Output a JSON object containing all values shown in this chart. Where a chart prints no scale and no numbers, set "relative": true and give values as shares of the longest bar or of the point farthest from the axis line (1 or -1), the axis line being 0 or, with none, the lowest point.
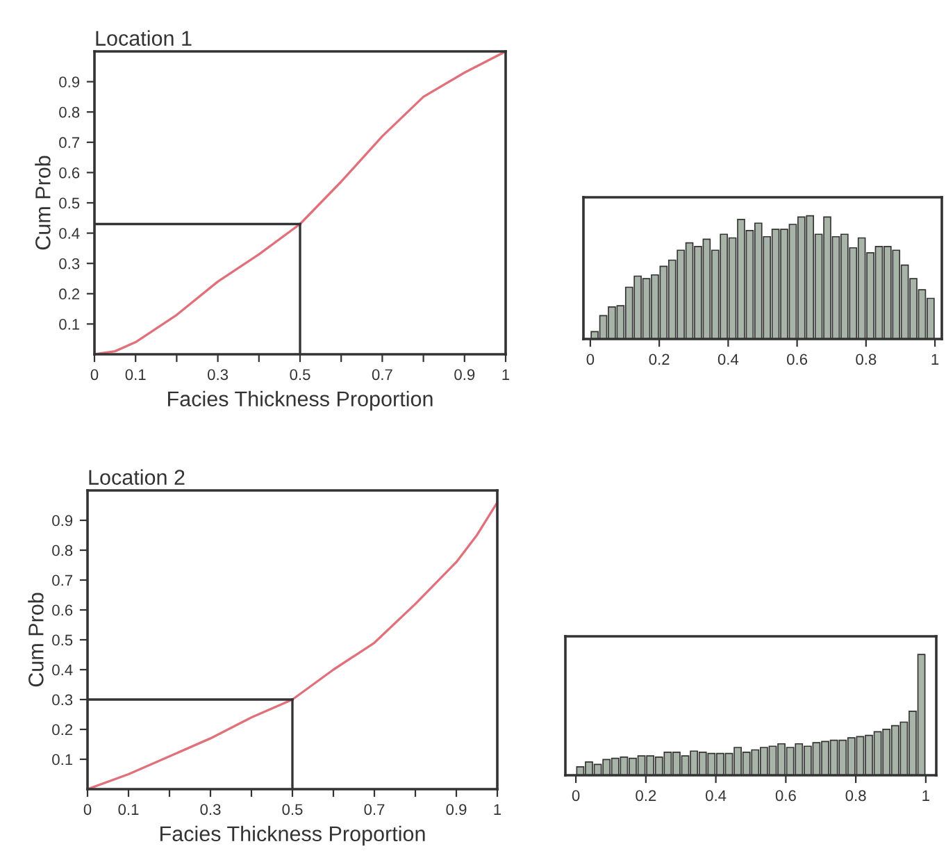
{
  "chart_data": [
    {
      "type": "line",
      "title": "Location 1",
      "xlabel": "Facies Thickness Proportion",
      "ylabel": "Cum Prob",
      "x": [
        0,
        0.05,
        0.1,
        0.2,
        0.3,
        0.4,
        0.5,
        0.6,
        0.7,
        0.8,
        0.9,
        1
      ],
      "series": [
        {
          "color": "#e0707a",
          "values": [
            0,
            0.01,
            0.04,
            0.13,
            0.24,
            0.33,
            0.43,
            0.57,
            0.72,
            0.85,
            0.93,
            1
          ]
        }
      ],
      "xlim": [
        0,
        1
      ],
      "ylim": [
        0,
        1
      ],
      "xticks": [
        0,
        0.1,
        {
          "value": 0.2,
          "label": null
        },
        0.3,
        {
          "value": 0.4,
          "label": null
        },
        0.5,
        {
          "value": 0.6,
          "label": null
        },
        0.7,
        {
          "value": 0.8,
          "label": null
        },
        0.9,
        1
      ],
      "yticks": [
        0.1,
        0.2,
        0.3,
        0.4,
        0.5,
        0.6,
        0.7,
        0.8,
        0.9
      ],
      "ref_lines": [
        {
          "axis": "x",
          "value": 0.5,
          "color": "#333333"
        },
        {
          "axis": "y",
          "value": 0.43,
          "color": "#333333"
        }
      ],
      "grid": false
    },
    {
      "type": "bar",
      "relative": true,
      "color": "#a9b4a9",
      "x": [
        0.0125,
        0.0375,
        0.0625,
        0.0875,
        0.1125,
        0.1375,
        0.1625,
        0.1875,
        0.2125,
        0.2375,
        0.2625,
        0.2875,
        0.3125,
        0.3375,
        0.3625,
        0.3875,
        0.4125,
        0.4375,
        0.4625,
        0.4875,
        0.5125,
        0.5375,
        0.5625,
        0.5875,
        0.6125,
        0.6375,
        0.6625,
        0.6875,
        0.7125,
        0.7375,
        0.7625,
        0.7875,
        0.8125,
        0.8375,
        0.8625,
        0.8875,
        0.9125,
        0.9375,
        0.9625,
        0.9875
      ],
      "values": [
        0.06,
        0.19,
        0.26,
        0.27,
        0.42,
        0.51,
        0.49,
        0.52,
        0.59,
        0.64,
        0.72,
        0.78,
        0.75,
        0.81,
        0.72,
        0.85,
        0.82,
        0.97,
        0.88,
        0.94,
        0.83,
        0.89,
        0.89,
        0.93,
        0.99,
        1.0,
        0.85,
        0.99,
        0.83,
        0.85,
        0.74,
        0.82,
        0.7,
        0.75,
        0.75,
        0.72,
        0.6,
        0.49,
        0.4,
        0.33
      ],
      "xlim": [
        -0.02,
        1.02
      ],
      "xticks": [
        0,
        0.2,
        0.4,
        0.6,
        0.8,
        1
      ],
      "grid": false
    },
    {
      "type": "line",
      "title": "Location 2",
      "xlabel": "Facies Thickness Proportion",
      "ylabel": "Cum Prob",
      "x": [
        0,
        0.1,
        0.2,
        0.3,
        0.4,
        0.5,
        0.6,
        0.7,
        0.8,
        0.9,
        0.95,
        1
      ],
      "series": [
        {
          "color": "#e0707a",
          "values": [
            0,
            0.05,
            0.11,
            0.17,
            0.24,
            0.3,
            0.4,
            0.49,
            0.62,
            0.76,
            0.85,
            0.96
          ]
        }
      ],
      "xlim": [
        0,
        1
      ],
      "ylim": [
        0,
        1
      ],
      "xticks": [
        0,
        0.1,
        {
          "value": 0.2,
          "label": null
        },
        0.3,
        {
          "value": 0.4,
          "label": null
        },
        0.5,
        {
          "value": 0.6,
          "label": null
        },
        0.7,
        {
          "value": 0.8,
          "label": null
        },
        0.9,
        1
      ],
      "yticks": [
        0.1,
        0.2,
        0.3,
        0.4,
        0.5,
        0.6,
        0.7,
        0.8,
        0.9
      ],
      "ref_lines": [
        {
          "axis": "x",
          "value": 0.5,
          "color": "#333333"
        },
        {
          "axis": "y",
          "value": 0.3,
          "color": "#333333"
        }
      ],
      "grid": false
    },
    {
      "type": "bar",
      "relative": true,
      "color": "#a9b4a9",
      "x": [
        0.0125,
        0.0375,
        0.0625,
        0.0875,
        0.1125,
        0.1375,
        0.1625,
        0.1875,
        0.2125,
        0.2375,
        0.2625,
        0.2875,
        0.3125,
        0.3375,
        0.3625,
        0.3875,
        0.4125,
        0.4375,
        0.4625,
        0.4875,
        0.5125,
        0.5375,
        0.5625,
        0.5875,
        0.6125,
        0.6375,
        0.6625,
        0.6875,
        0.7125,
        0.7375,
        0.7625,
        0.7875,
        0.8125,
        0.8375,
        0.8625,
        0.8875,
        0.9125,
        0.9375,
        0.9625,
        0.9875
      ],
      "values": [
        0.07,
        0.11,
        0.09,
        0.13,
        0.14,
        0.15,
        0.14,
        0.16,
        0.16,
        0.15,
        0.19,
        0.19,
        0.16,
        0.2,
        0.19,
        0.18,
        0.18,
        0.18,
        0.23,
        0.19,
        0.21,
        0.23,
        0.24,
        0.26,
        0.23,
        0.26,
        0.24,
        0.27,
        0.28,
        0.29,
        0.29,
        0.31,
        0.32,
        0.33,
        0.36,
        0.38,
        0.41,
        0.44,
        0.53,
        1.0
      ],
      "xlim": [
        -0.03,
        1.03
      ],
      "xticks": [
        0,
        0.2,
        0.4,
        0.6,
        0.8,
        1
      ],
      "grid": false
    }
  ]
}
